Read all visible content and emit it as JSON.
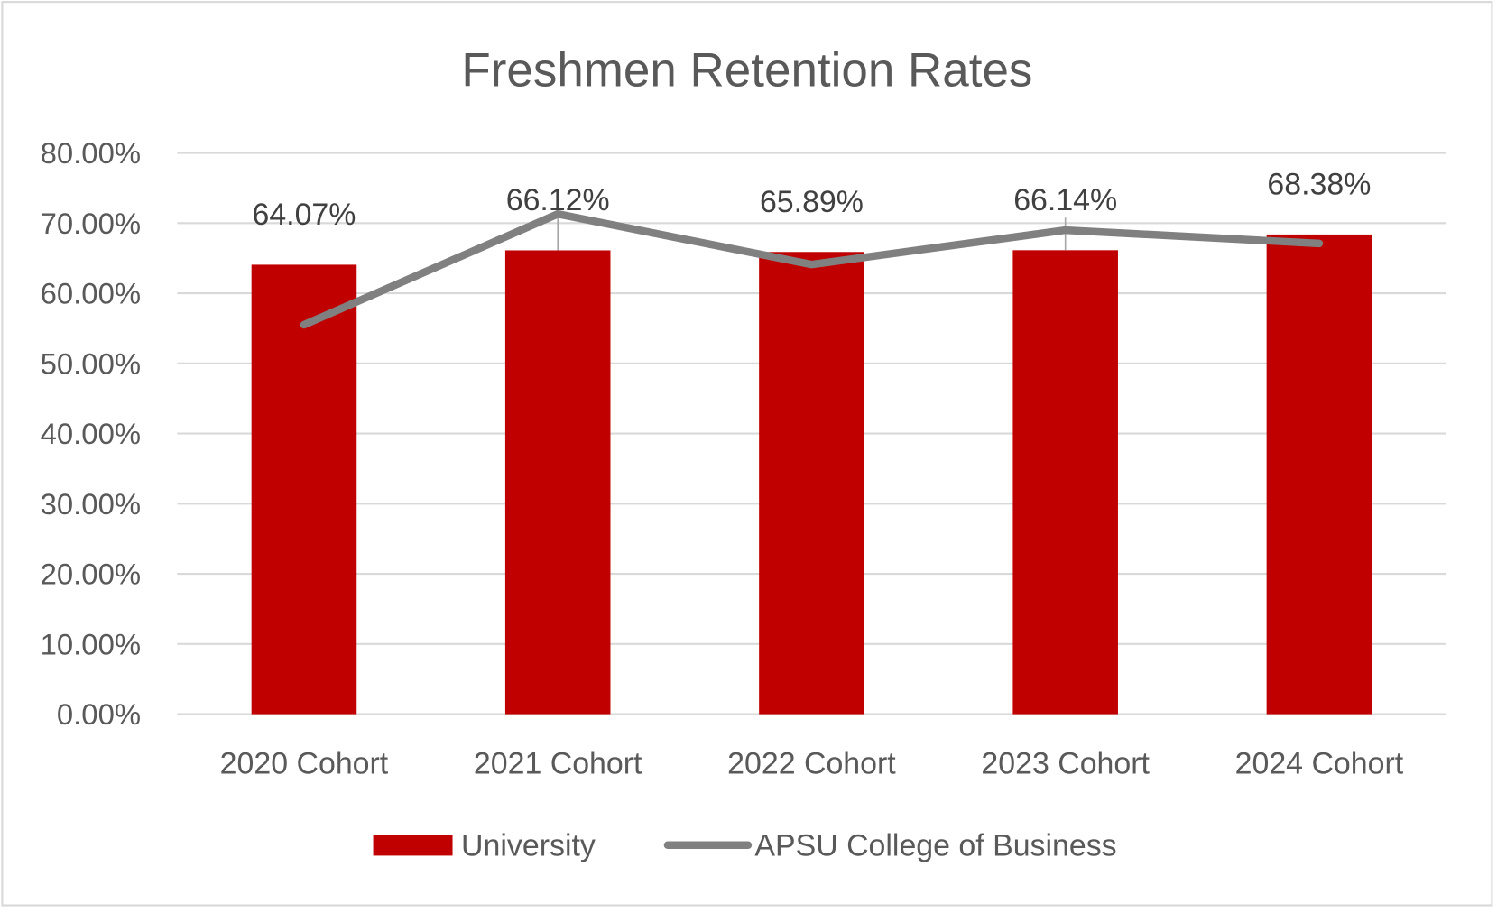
{
  "chart_data": {
    "type": "bar+line",
    "title": "Freshmen Retention Rates",
    "categories": [
      "2020 Cohort",
      "2021 Cohort",
      "2022 Cohort",
      "2023 Cohort",
      "2024 Cohort"
    ],
    "series": [
      {
        "name": "University",
        "type": "bar",
        "color": "#C00000",
        "values": [
          64.07,
          66.12,
          65.89,
          66.14,
          68.38
        ],
        "data_labels": [
          "64.07%",
          "66.12%",
          "65.89%",
          "66.14%",
          "68.38%"
        ]
      },
      {
        "name": "APSU College of Business",
        "type": "line",
        "color": "#808080",
        "values": [
          55.5,
          71.3,
          64.1,
          69.0,
          67.1
        ]
      }
    ],
    "ylim": [
      0,
      80
    ],
    "yticks": [
      "0.00%",
      "10.00%",
      "20.00%",
      "30.00%",
      "40.00%",
      "50.00%",
      "60.00%",
      "70.00%",
      "80.00%"
    ],
    "grid": true,
    "legend": "bottom"
  }
}
